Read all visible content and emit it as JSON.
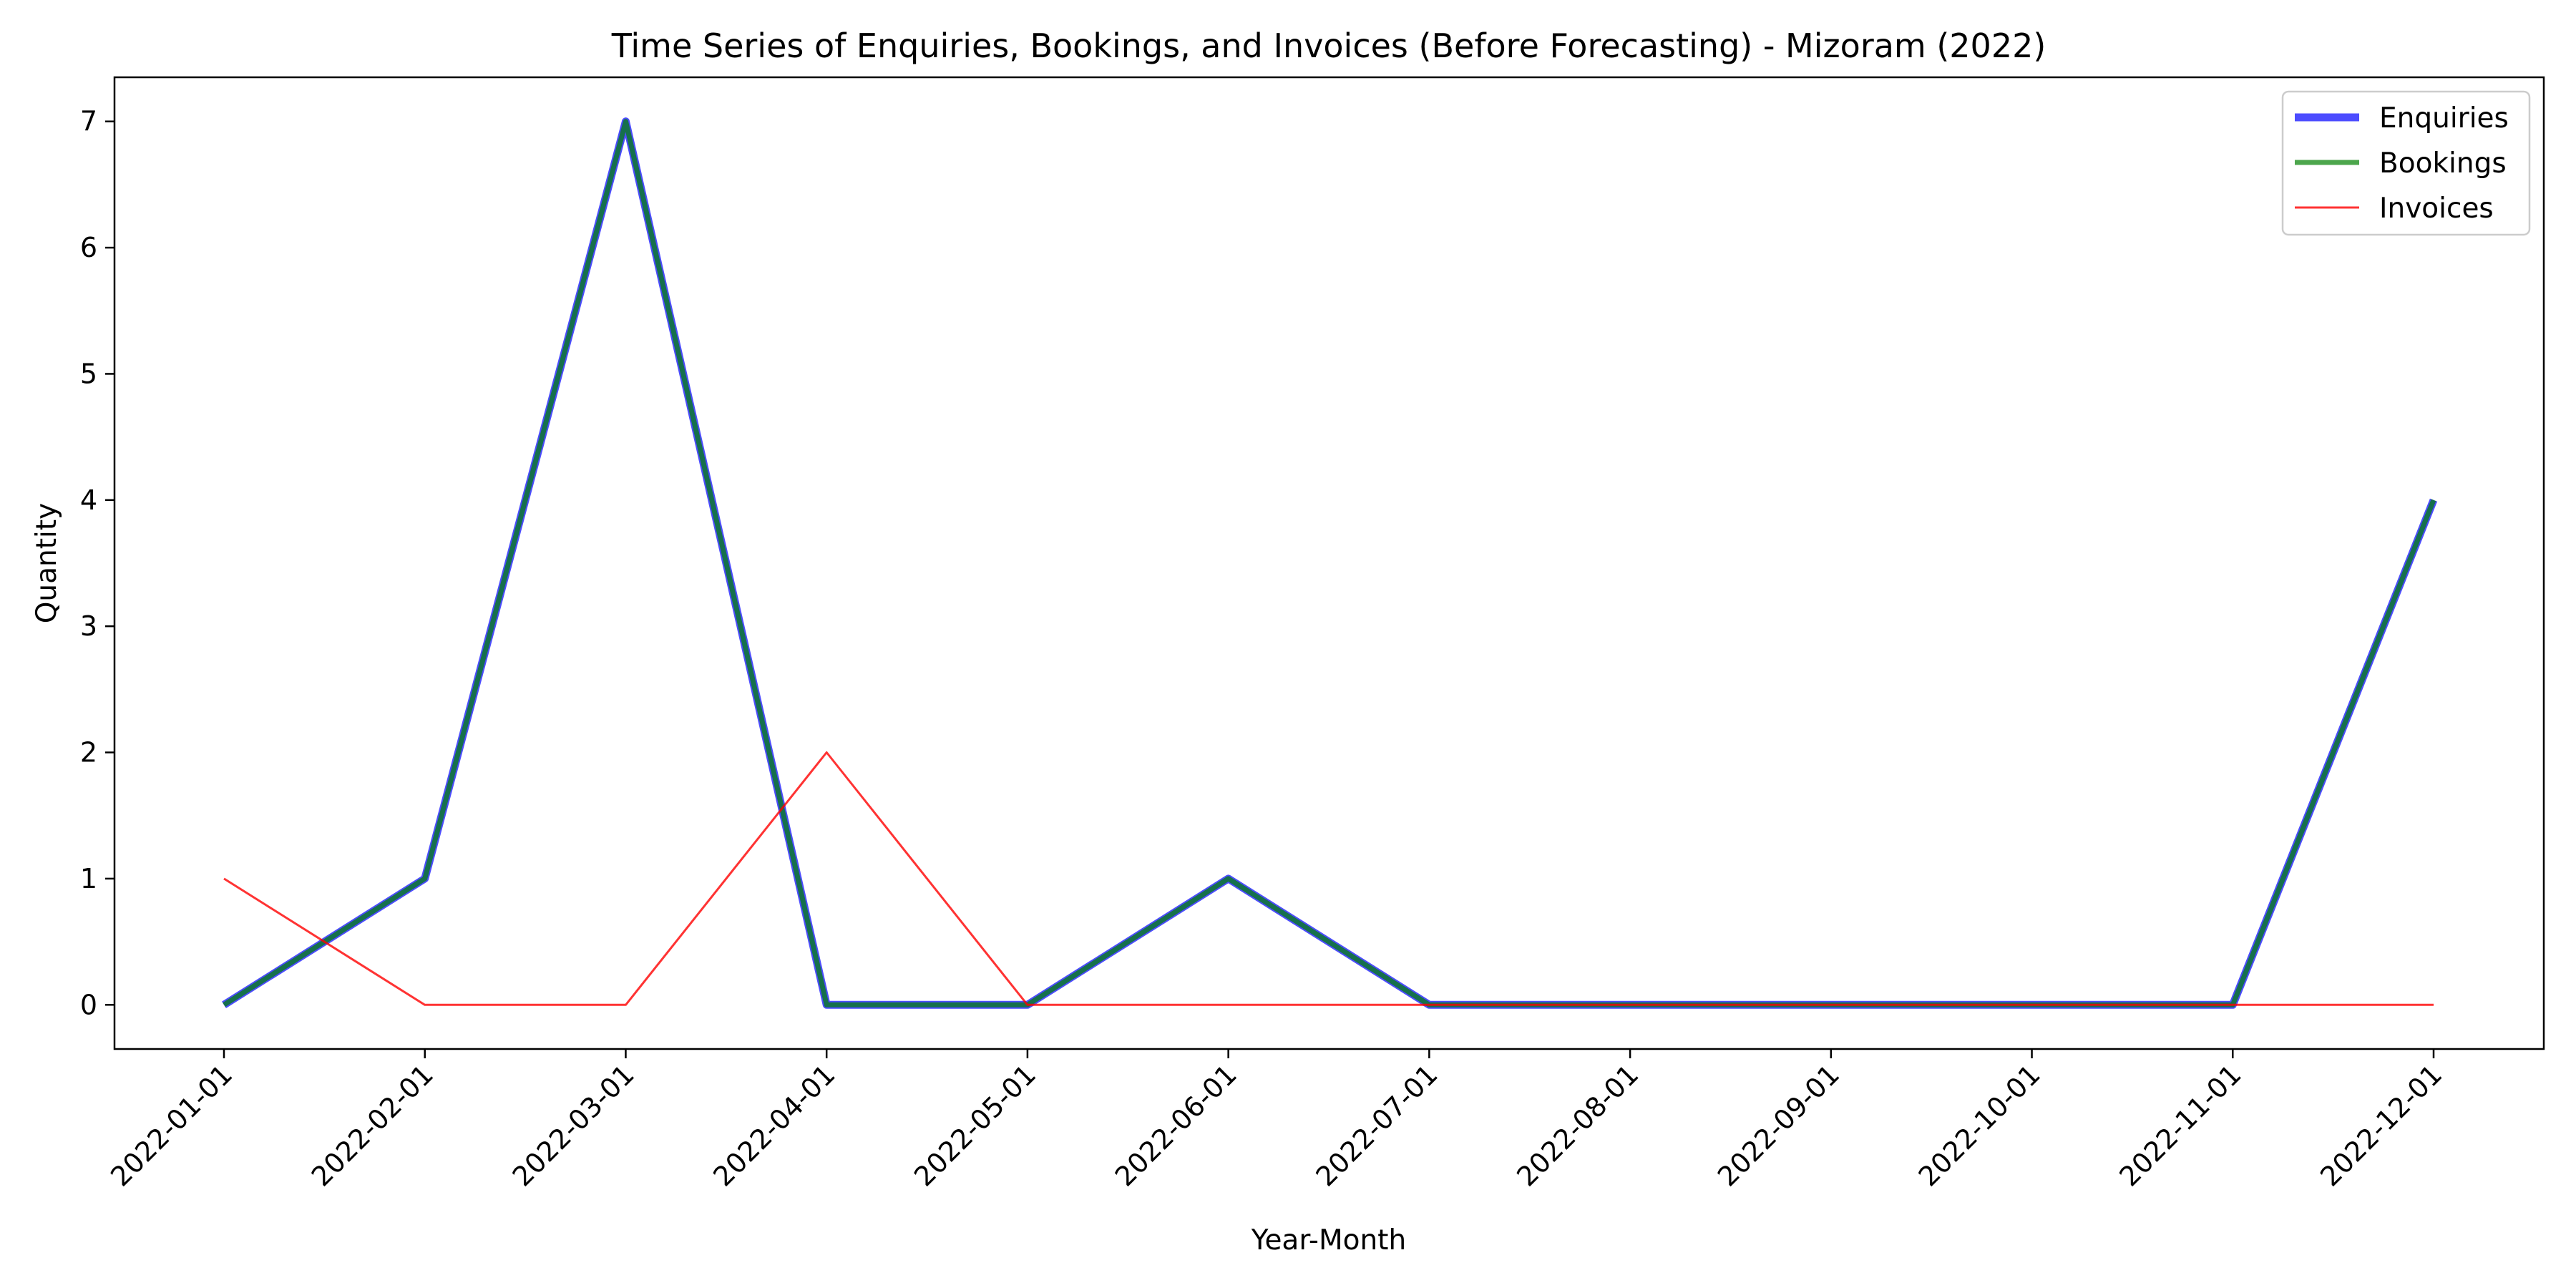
{
  "chart_data": {
    "type": "line",
    "title": "Time Series of Enquiries, Bookings, and Invoices (Before Forecasting) - Mizoram (2022)",
    "xlabel": "Year-Month",
    "ylabel": "Quantity",
    "x": [
      "2022-01-01",
      "2022-02-01",
      "2022-03-01",
      "2022-04-01",
      "2022-05-01",
      "2022-06-01",
      "2022-07-01",
      "2022-08-01",
      "2022-09-01",
      "2022-10-01",
      "2022-11-01",
      "2022-12-01"
    ],
    "ylim": [
      -0.35,
      7.35
    ],
    "yticks": [
      0,
      1,
      2,
      3,
      4,
      5,
      6,
      7
    ],
    "grid": false,
    "legend_position": "top-right",
    "series": [
      {
        "name": "Enquiries",
        "color": "#0000ff",
        "opacity": 0.7,
        "values": [
          0,
          1,
          7,
          0,
          0,
          1,
          0,
          0,
          0,
          0,
          0,
          4
        ]
      },
      {
        "name": "Bookings",
        "color": "#008000",
        "opacity": 0.7,
        "values": [
          0,
          1,
          7,
          0,
          0,
          1,
          0,
          0,
          0,
          0,
          0,
          4
        ]
      },
      {
        "name": "Invoices",
        "color": "#ff0000",
        "opacity": 0.8,
        "values": [
          1,
          0,
          0,
          2,
          0,
          0,
          0,
          0,
          0,
          0,
          0,
          0
        ]
      }
    ]
  }
}
